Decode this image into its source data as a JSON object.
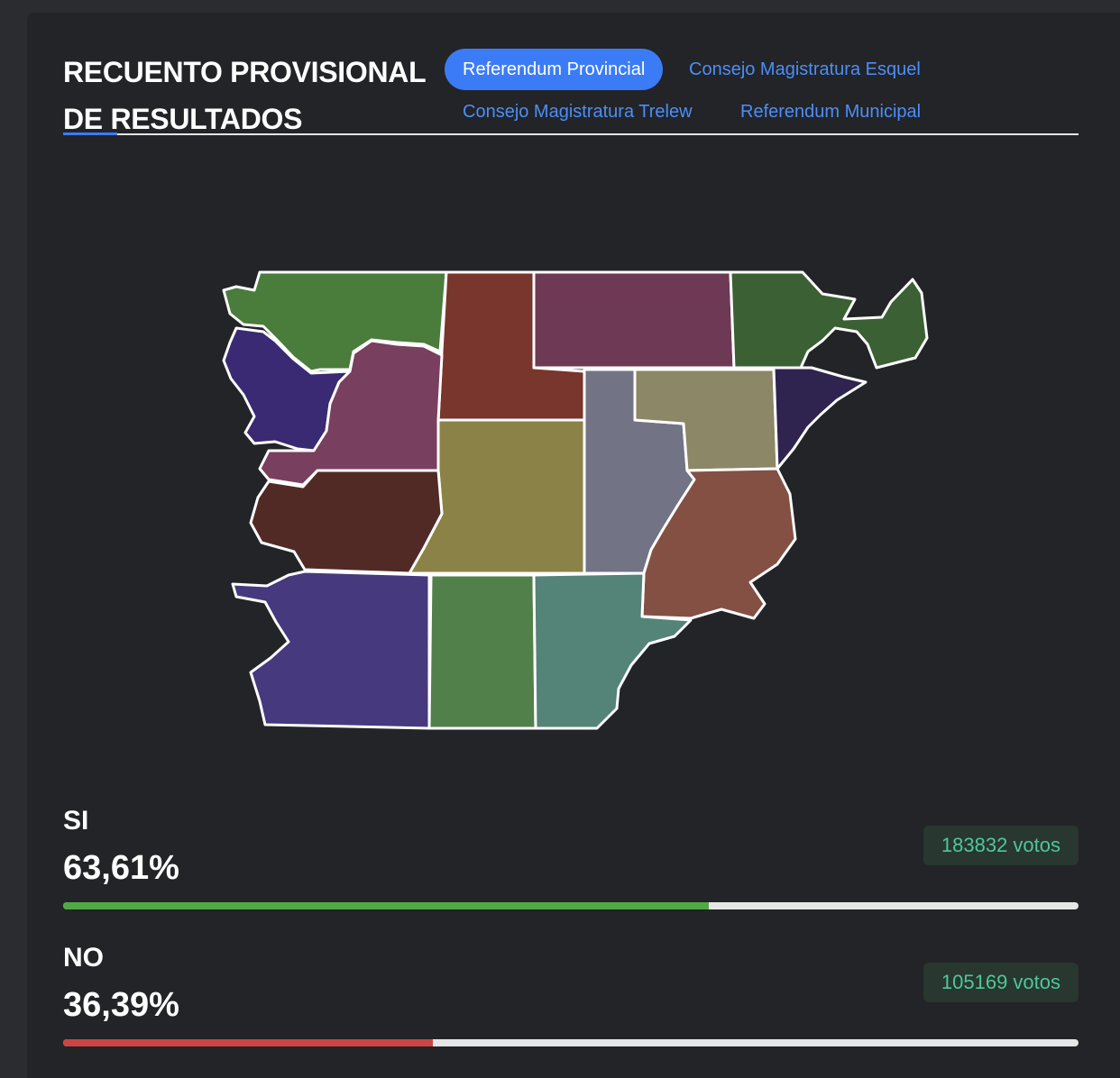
{
  "header": {
    "title": "RECUENTO PROVISIONAL DE RESULTADOS"
  },
  "tabs": [
    {
      "label": "Referendum Provincial",
      "active": true
    },
    {
      "label": "Consejo Magistratura Esquel",
      "active": false
    },
    {
      "label": "Consejo Magistratura Trelew",
      "active": false
    },
    {
      "label": "Referendum Municipal",
      "active": false
    }
  ],
  "map": {
    "regions": [
      {
        "name": "department-1",
        "color": "#4a7c3c"
      },
      {
        "name": "department-2",
        "color": "#78362d"
      },
      {
        "name": "department-3",
        "color": "#6e3955"
      },
      {
        "name": "department-4",
        "color": "#3b6034"
      },
      {
        "name": "department-5",
        "color": "#3a2a73"
      },
      {
        "name": "department-6",
        "color": "#793f5f"
      },
      {
        "name": "department-7",
        "color": "#8b8247"
      },
      {
        "name": "department-8",
        "color": "#737386"
      },
      {
        "name": "department-9",
        "color": "#8b8767"
      },
      {
        "name": "department-10",
        "color": "#2f2450"
      },
      {
        "name": "department-11",
        "color": "#522a25"
      },
      {
        "name": "department-12",
        "color": "#845043"
      },
      {
        "name": "department-13",
        "color": "#46397d"
      },
      {
        "name": "department-14",
        "color": "#52804b"
      },
      {
        "name": "department-15",
        "color": "#548377"
      }
    ]
  },
  "results": [
    {
      "label": "SI",
      "percent_text": "63,61%",
      "percent": 63.61,
      "votes": "183832 votos",
      "bar_color": "#4faa46"
    },
    {
      "label": "NO",
      "percent_text": "36,39%",
      "percent": 36.39,
      "votes": "105169 votos",
      "bar_color": "#cc4444"
    }
  ],
  "colors": {
    "accent": "#3b7cf6",
    "votes_text": "#4fc79a",
    "card_bg": "#222428"
  }
}
